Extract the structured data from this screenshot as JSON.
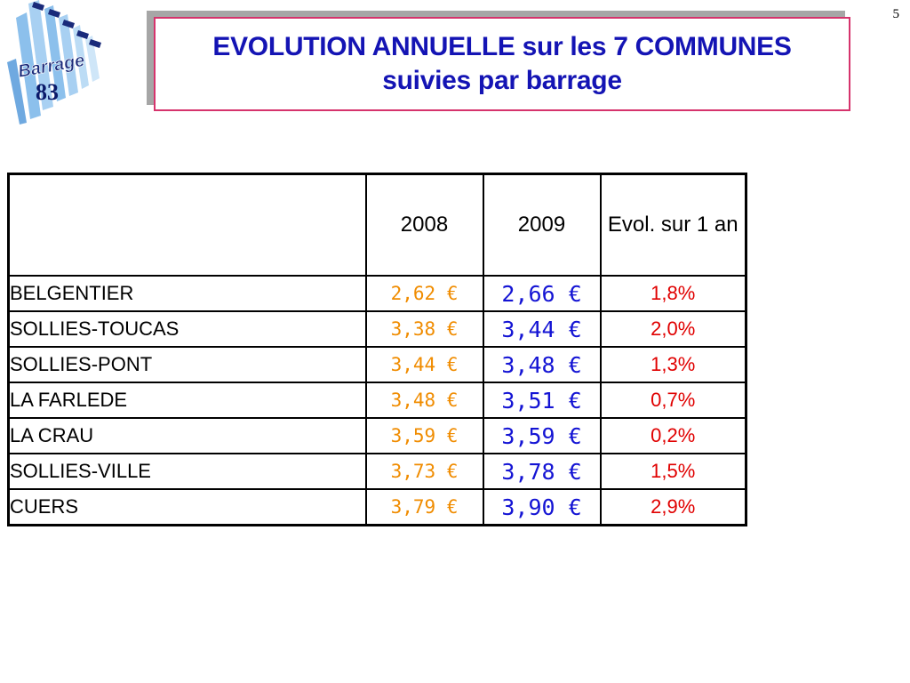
{
  "page_number": "5",
  "logo": {
    "word": "Barrage",
    "number": "83"
  },
  "title": {
    "line1": "EVOLUTION ANNUELLE sur les 7 COMMUNES",
    "line2": "suivies par barrage"
  },
  "table": {
    "headers": [
      "",
      "2008",
      "2009",
      "Evol. sur 1 an"
    ],
    "rows": [
      {
        "commune": "BELGENTIER",
        "v2008": "2,62 €",
        "v2009": "2,66 €",
        "evol": "1,8%"
      },
      {
        "commune": "SOLLIES-TOUCAS",
        "v2008": "3,38 €",
        "v2009": "3,44 €",
        "evol": "2,0%"
      },
      {
        "commune": "SOLLIES-PONT",
        "v2008": "3,44 €",
        "v2009": "3,48 €",
        "evol": "1,3%"
      },
      {
        "commune": "LA FARLEDE",
        "v2008": "3,48 €",
        "v2009": "3,51 €",
        "evol": "0,7%"
      },
      {
        "commune": "LA CRAU",
        "v2008": "3,59 €",
        "v2009": "3,59 €",
        "evol": "0,2%"
      },
      {
        "commune": "SOLLIES-VILLE",
        "v2008": "3,73 €",
        "v2009": "3,78 €",
        "evol": "1,5%"
      },
      {
        "commune": "CUERS",
        "v2008": "3,79 €",
        "v2009": "3,90 €",
        "evol": "2,9%"
      }
    ]
  },
  "colors": {
    "title": "#1414b4",
    "title_border": "#d6336c",
    "value_2008": "#f08c00",
    "value_2009": "#1414d4",
    "evol": "#e00000"
  }
}
